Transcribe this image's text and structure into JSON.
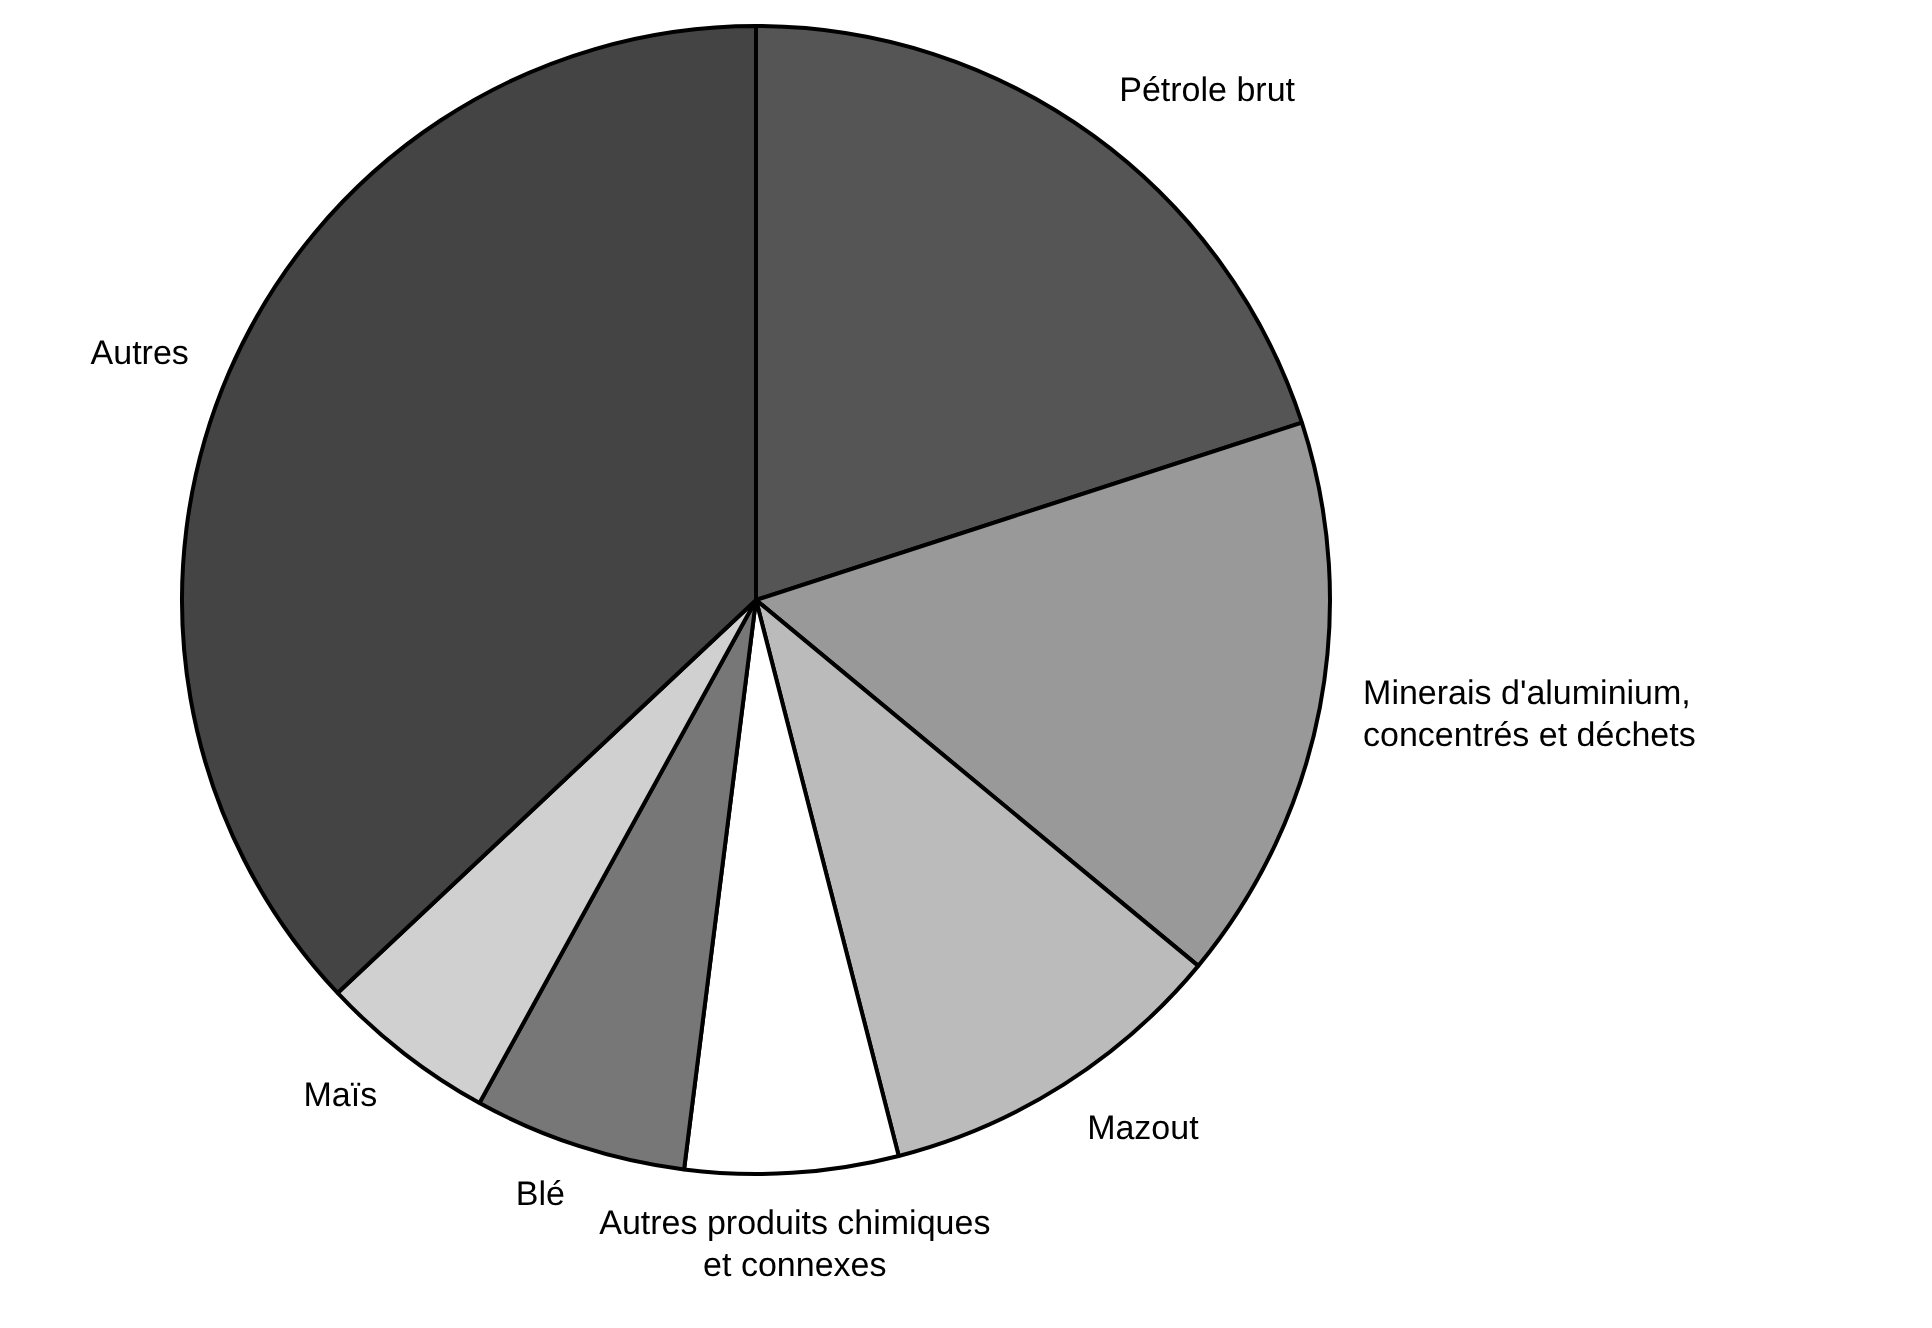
{
  "chart_data": {
    "type": "pie",
    "categories": [
      "Pétrole brut",
      "Minerais d'aluminium, concentrés et déchets",
      "Mazout",
      "Autres produits chimiques et connexes",
      "Blé",
      "Maïs",
      "Autres"
    ],
    "values": [
      20,
      16,
      10,
      6,
      6,
      5,
      37
    ],
    "colors": [
      "#555555",
      "#999999",
      "#bbbbbb",
      "#ffffff",
      "#777777",
      "#d0d0d0",
      "#444444"
    ],
    "legend": false
  }
}
